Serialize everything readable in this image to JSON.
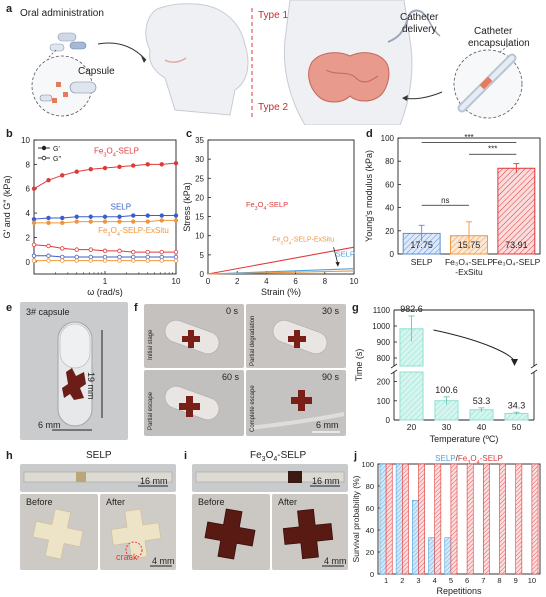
{
  "panel_letters": [
    "a",
    "b",
    "c",
    "d",
    "e",
    "f",
    "g",
    "h",
    "i",
    "j"
  ],
  "panel_a": {
    "oral_administration": "Oral administration",
    "capsule": "Capsule",
    "type1": "Type 1",
    "type2": "Type 2",
    "catheter_delivery_line1": "Catheter",
    "catheter_delivery_line2": "delivery",
    "catheter_encapsulation_line1": "Catheter",
    "catheter_encapsulation_line2": "encapsulation"
  },
  "panel_e": {
    "capsule_label": "3# capsule",
    "scale_v": "19 mm",
    "scale_h": "6 mm"
  },
  "panel_f": {
    "times": [
      "0 s",
      "30 s",
      "60 s",
      "90 s"
    ],
    "stages": [
      "Initial stage",
      "Partial degradation",
      "Partial escape",
      "Complete escape"
    ],
    "scale": "6 mm"
  },
  "panel_h": {
    "title": "SELP",
    "scale_top": "16 mm",
    "before": "Before",
    "after": "After",
    "crack": "crack",
    "scale_bottom": "4 mm"
  },
  "panel_i": {
    "title_pre": "Fe",
    "title_sub": "3",
    "title_mid": "O",
    "title_sub2": "4",
    "title_post": "-SELP",
    "scale_top": "16 mm",
    "before": "Before",
    "after": "After",
    "scale_bottom": "4 mm"
  },
  "chart_data": [
    {
      "panel": "b",
      "type": "line",
      "xlabel": "ω (rad/s)",
      "ylabel": "G′ and G″ (kPa)",
      "xscale": "log",
      "xlim": [
        0.1,
        10
      ],
      "ylim": [
        -1,
        10
      ],
      "xticks": [
        "1",
        "10"
      ],
      "yticks": [
        0,
        2,
        4,
        6,
        8,
        10
      ],
      "legend": [
        "G′",
        "G″"
      ],
      "legend_position": "top-left",
      "x": [
        0.1,
        0.16,
        0.25,
        0.4,
        0.63,
        1,
        1.6,
        2.5,
        4,
        6.3,
        10
      ],
      "series": [
        {
          "name": "Fe₃O₄-SELP",
          "kind": "G′",
          "color": "#e0393b",
          "values": [
            6.0,
            6.7,
            7.1,
            7.4,
            7.6,
            7.7,
            7.8,
            7.9,
            8.0,
            8.0,
            8.1
          ]
        },
        {
          "name": "SELP",
          "kind": "G′",
          "color": "#3a5fcd",
          "values": [
            3.5,
            3.6,
            3.6,
            3.7,
            3.7,
            3.7,
            3.7,
            3.8,
            3.8,
            3.8,
            3.8
          ]
        },
        {
          "name": "Fe₃O₄-SELP-ExSitu",
          "kind": "G′",
          "color": "#f0963c",
          "values": [
            3.2,
            3.2,
            3.2,
            3.3,
            3.3,
            3.3,
            3.3,
            3.3,
            3.3,
            3.4,
            3.4
          ]
        },
        {
          "name": "Fe₃O₄-SELP",
          "kind": "G″",
          "color": "#e0393b",
          "values": [
            1.4,
            1.3,
            1.1,
            1.0,
            1.0,
            0.9,
            0.9,
            0.8,
            0.8,
            0.8,
            0.8
          ]
        },
        {
          "name": "SELP",
          "kind": "G″",
          "color": "#3a5fcd",
          "values": [
            0.5,
            0.5,
            0.4,
            0.4,
            0.4,
            0.4,
            0.4,
            0.4,
            0.4,
            0.4,
            0.4
          ]
        },
        {
          "name": "Fe₃O₄-SELP-ExSitu",
          "kind": "G″",
          "color": "#f0963c",
          "values": [
            0.1,
            0.1,
            0.1,
            0.1,
            0.1,
            0.1,
            0.1,
            0.1,
            0.1,
            0.1,
            0.1
          ]
        }
      ],
      "labels": [
        {
          "pre": "Fe",
          "s1": "3",
          "mid": "O",
          "s2": "4",
          "post": "-SELP",
          "color": "#e0393b"
        },
        {
          "pre": "",
          "s1": "",
          "mid": "",
          "s2": "",
          "post": "SELP",
          "color": "#3a5fcd"
        },
        {
          "pre": "Fe",
          "s1": "3",
          "mid": "O",
          "s2": "4",
          "post": "-SELP-ExSitu",
          "color": "#f0963c"
        }
      ]
    },
    {
      "panel": "c",
      "type": "line",
      "xlabel": "Strain (%)",
      "ylabel": "Stress (kPa)",
      "xlim": [
        0,
        10
      ],
      "ylim": [
        0,
        35
      ],
      "xticks": [
        0,
        2,
        4,
        6,
        8,
        10
      ],
      "yticks": [
        0,
        5,
        10,
        15,
        20,
        25,
        30,
        35
      ],
      "series": [
        {
          "name": "Fe₃O₄-SELP",
          "color": "#e0393b",
          "x": [
            0,
            10
          ],
          "values": [
            0,
            7.0
          ]
        },
        {
          "name": "SELP",
          "color": "#4aa3df",
          "x": [
            0,
            10
          ],
          "values": [
            0,
            1.4
          ]
        },
        {
          "name": "Fe₃O₄-SELP-ExSitu",
          "color": "#f0963c",
          "x": [
            0,
            10
          ],
          "values": [
            0,
            0.8
          ]
        }
      ],
      "labels": [
        {
          "pre": "Fe",
          "s1": "3",
          "mid": "O",
          "s2": "4",
          "post": "-SELP",
          "color": "#e0393b"
        },
        {
          "pre": "Fe",
          "s1": "3",
          "mid": "O",
          "s2": "4",
          "post": "-SELP-ExSitu",
          "color": "#f0963c"
        },
        {
          "pre": "",
          "s1": "",
          "mid": "",
          "s2": "",
          "post": "SELP",
          "color": "#4aa3df"
        }
      ]
    },
    {
      "panel": "d",
      "type": "bar",
      "ylabel": "Young's modulus (kPa)",
      "ylim": [
        0,
        100
      ],
      "yticks": [
        0,
        20,
        40,
        60,
        80,
        100
      ],
      "categories": [
        "SELP",
        "Fe₃O₄-SELP\n-ExSitu",
        "Fe₃O₄-SELP"
      ],
      "category_lines": [
        [
          "SELP"
        ],
        [
          "Fe₃O₄-SELP",
          "-ExSitu"
        ],
        [
          "Fe₃O₄-SELP"
        ]
      ],
      "values": [
        17.75,
        15.75,
        73.91
      ],
      "value_labels": [
        "17.75",
        "15.75",
        "73.91"
      ],
      "errors": [
        7,
        12,
        4
      ],
      "colors": [
        "#5b8fd6",
        "#f0963c",
        "#e0393b"
      ],
      "significance": [
        {
          "from": 0,
          "to": 1,
          "label": "ns"
        },
        {
          "from": 1,
          "to": 2,
          "label": "***"
        },
        {
          "from": 0,
          "to": 2,
          "label": "***"
        }
      ]
    },
    {
      "panel": "g",
      "type": "bar",
      "xlabel": "Temperature (ºC)",
      "ylabel": "Time (s)",
      "categories": [
        "20",
        "30",
        "40",
        "50"
      ],
      "values": [
        982.6,
        100.6,
        53.3,
        34.3
      ],
      "value_labels": [
        "982.6",
        "100.6",
        "53.3",
        "34.3"
      ],
      "errors": [
        80,
        20,
        10,
        6
      ],
      "color": "#8fe0d2",
      "axis_break": true,
      "lower_yticks": [
        0,
        100,
        200
      ],
      "upper_yticks": [
        800,
        900,
        1000,
        1100
      ],
      "upper_ytick_labels": [
        "800",
        "900",
        "1000",
        "1100"
      ]
    },
    {
      "panel": "j",
      "type": "bar",
      "xlabel": "Repetitions",
      "ylabel": "Survival probability (%)",
      "legend_pre": "SELP",
      "legend_sep": "/",
      "legend_fe": "Fe",
      "legend_s1": "3",
      "legend_o": "O",
      "legend_s2": "4",
      "legend_post": "-SELP",
      "categories": [
        "1",
        "2",
        "3",
        "4",
        "5",
        "6",
        "7",
        "8",
        "9",
        "10"
      ],
      "ylim": [
        0,
        100
      ],
      "yticks": [
        0,
        20,
        40,
        60,
        80,
        100
      ],
      "series": [
        {
          "name": "SELP",
          "color": "#4aa3df",
          "values": [
            100,
            100,
            67,
            33,
            33,
            0,
            0,
            0,
            0,
            0
          ]
        },
        {
          "name": "Fe₃O₄-SELP",
          "color": "#e0393b",
          "values": [
            100,
            100,
            100,
            100,
            100,
            100,
            100,
            100,
            100,
            100
          ]
        }
      ]
    }
  ]
}
